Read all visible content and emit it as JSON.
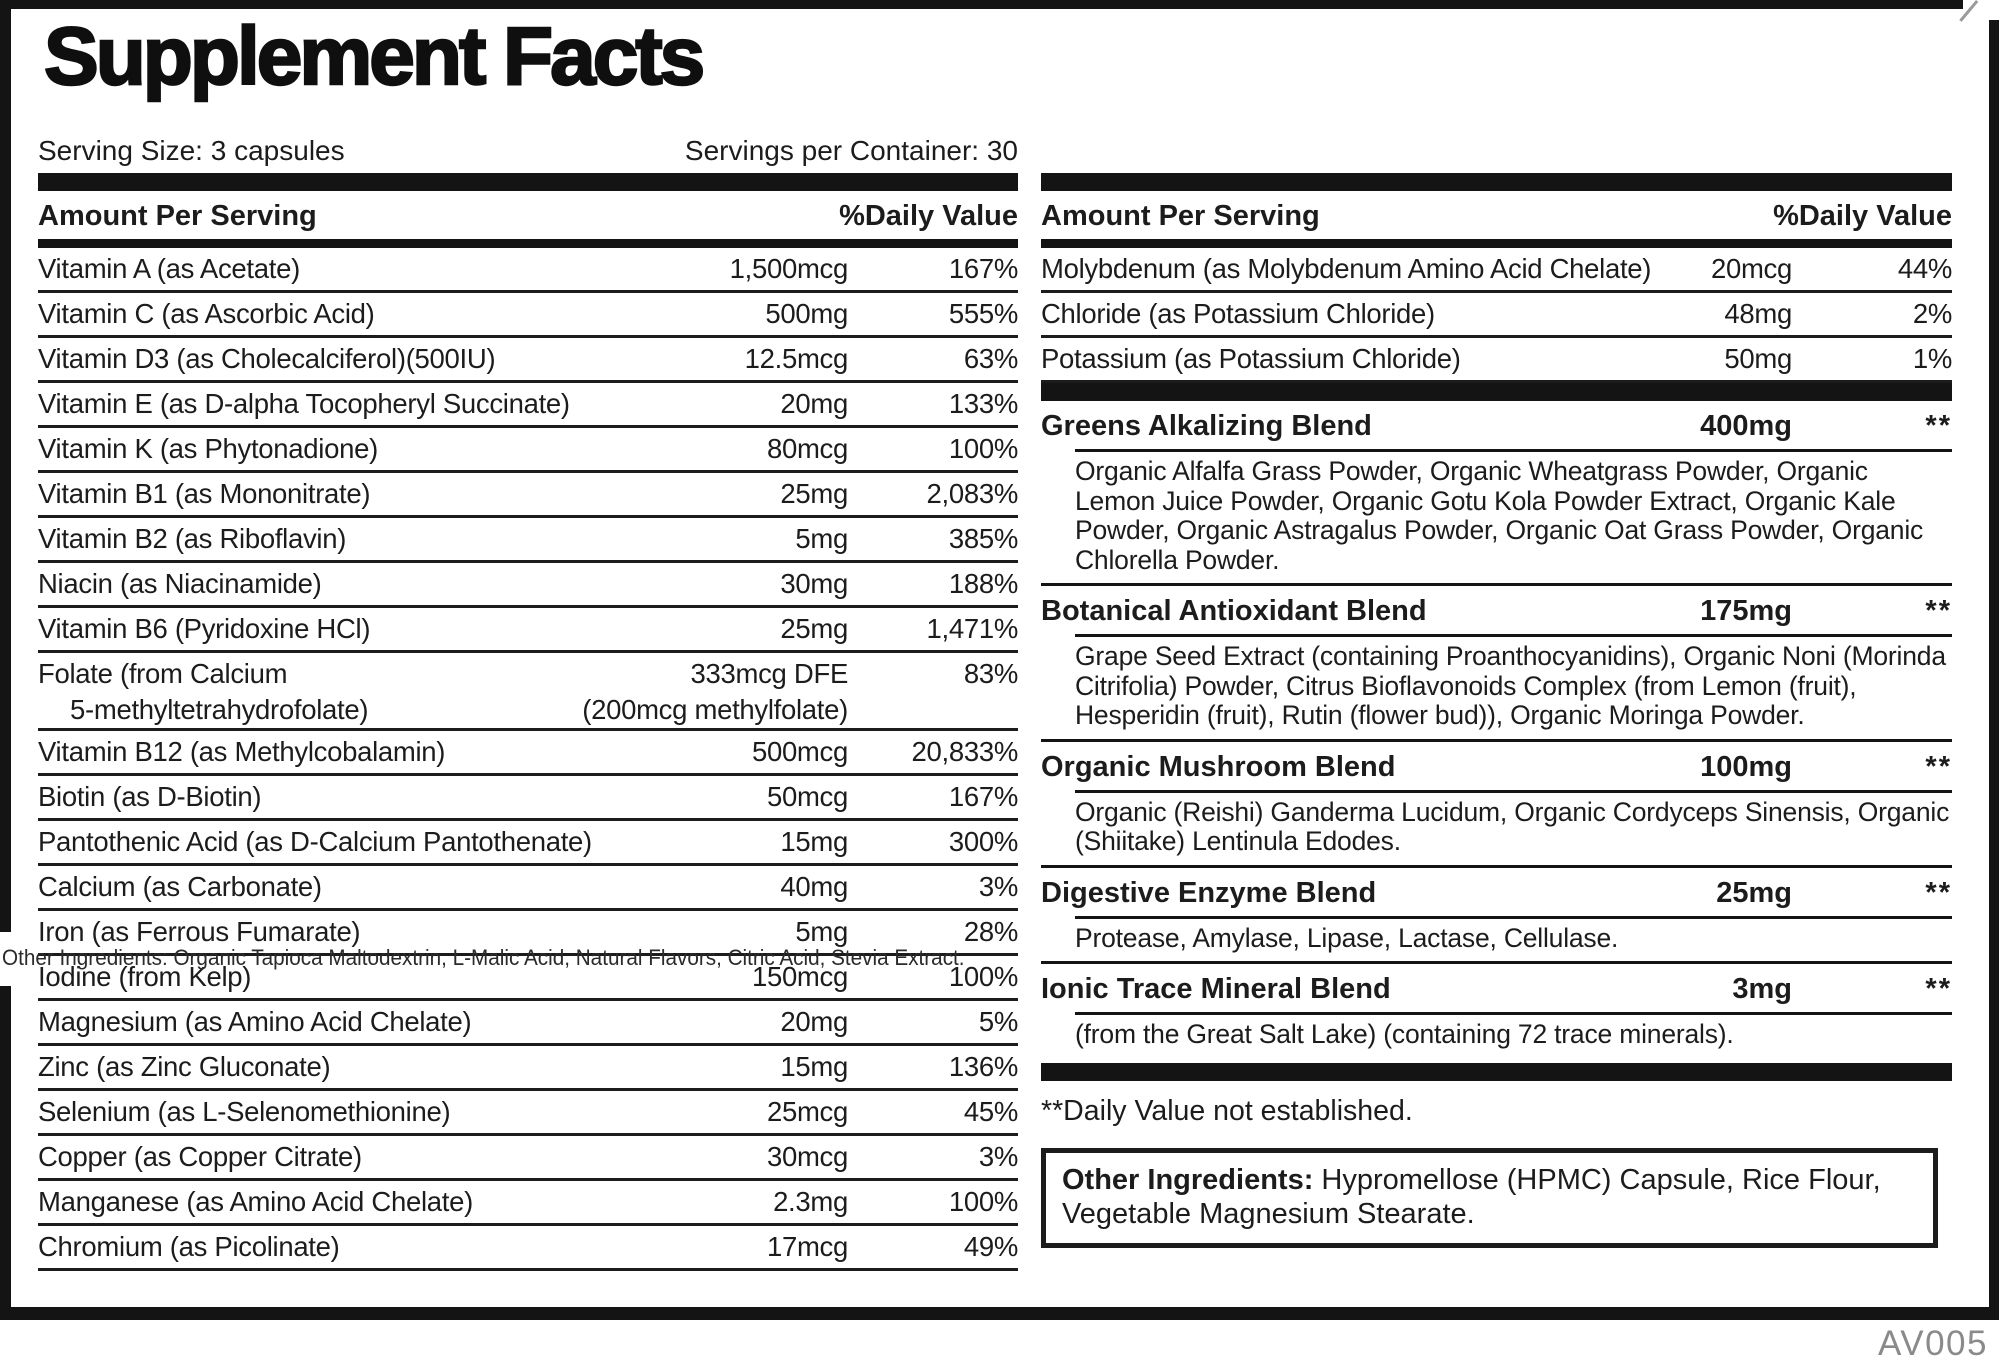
{
  "title": "Supplement Facts",
  "serving": {
    "size": "Serving Size: 3 capsules",
    "per_container": "Servings per Container: 30"
  },
  "table_header": {
    "amount": "Amount Per Serving",
    "dv": "%Daily Value"
  },
  "left_rows": [
    {
      "name": "Vitamin A (as Acetate)",
      "amount": "1,500mcg",
      "dv": "167%"
    },
    {
      "name": "Vitamin C (as Ascorbic Acid)",
      "amount": "500mg",
      "dv": "555%"
    },
    {
      "name": "Vitamin D3 (as Cholecalciferol)(500IU)",
      "amount": "12.5mcg",
      "dv": "63%"
    },
    {
      "name": "Vitamin E (as D-alpha Tocopheryl Succinate)",
      "amount": "20mg",
      "dv": "133%"
    },
    {
      "name": "Vitamin K (as Phytonadione)",
      "amount": "80mcg",
      "dv": "100%"
    },
    {
      "name": "Vitamin B1 (as Mononitrate)",
      "amount": "25mg",
      "dv": "2,083%"
    },
    {
      "name": "Vitamin B2 (as Riboflavin)",
      "amount": "5mg",
      "dv": "385%"
    },
    {
      "name": "Niacin (as Niacinamide)",
      "amount": "30mg",
      "dv": "188%"
    },
    {
      "name": "Vitamin B6 (Pyridoxine HCl)",
      "amount": "25mg",
      "dv": "1,471%"
    },
    {
      "name": "Folate (from Calcium",
      "name_sub": "5-methyltetrahydrofolate)",
      "amount": "333mcg DFE",
      "amount_sub": "(200mcg methylfolate)",
      "dv": "83%"
    },
    {
      "name": "Vitamin B12 (as Methylcobalamin)",
      "amount": "500mcg",
      "dv": "20,833%"
    },
    {
      "name": "Biotin (as D-Biotin)",
      "amount": "50mcg",
      "dv": "167%"
    },
    {
      "name": "Pantothenic Acid (as D-Calcium Pantothenate)",
      "amount": "15mg",
      "dv": "300%"
    },
    {
      "name": "Calcium (as Carbonate)",
      "amount": "40mg",
      "dv": "3%"
    },
    {
      "name": "Iron (as Ferrous Fumarate)",
      "amount": "5mg",
      "dv": "28%"
    },
    {
      "name": "Iodine (from Kelp)",
      "amount": "150mcg",
      "dv": "100%"
    },
    {
      "name": "Magnesium (as Amino Acid Chelate)",
      "amount": "20mg",
      "dv": "5%"
    },
    {
      "name": "Zinc (as Zinc Gluconate)",
      "amount": "15mg",
      "dv": "136%"
    },
    {
      "name": "Selenium (as L-Selenomethionine)",
      "amount": "25mcg",
      "dv": "45%"
    },
    {
      "name": "Copper (as Copper Citrate)",
      "amount": "30mcg",
      "dv": "3%"
    },
    {
      "name": "Manganese (as Amino Acid Chelate)",
      "amount": "2.3mg",
      "dv": "100%"
    },
    {
      "name": "Chromium (as Picolinate)",
      "amount": "17mcg",
      "dv": "49%"
    }
  ],
  "right_rows": [
    {
      "name": "Molybdenum (as Molybdenum Amino Acid Chelate)",
      "amount": "20mcg",
      "dv": "44%"
    },
    {
      "name": "Chloride (as Potassium Chloride)",
      "amount": "48mg",
      "dv": "2%"
    },
    {
      "name": "Potassium (as Potassium Chloride)",
      "amount": "50mg",
      "dv": "1%"
    }
  ],
  "blends": [
    {
      "name": "Greens Alkalizing Blend",
      "amount": "400mg",
      "dv": "**",
      "desc": "Organic Alfalfa Grass Powder, Organic Wheatgrass Powder, Organic Lemon Juice Powder, Organic Gotu Kola Powder Extract, Organic Kale Powder, Organic Astragalus Powder, Organic Oat Grass Powder, Organic Chlorella Powder."
    },
    {
      "name": "Botanical Antioxidant Blend",
      "amount": "175mg",
      "dv": "**",
      "desc": "Grape Seed Extract (containing Proanthocyanidins), Organic Noni (Morinda Citrifolia) Powder, Citrus Bioflavonoids Complex (from Lemon (fruit), Hesperidin (fruit), Rutin (flower bud)), Organic Moringa Powder."
    },
    {
      "name": "Organic Mushroom Blend",
      "amount": "100mg",
      "dv": "**",
      "desc": "Organic (Reishi) Ganderma Lucidum, Organic Cordyceps Sinensis, Organic (Shiitake) Lentinula Edodes."
    },
    {
      "name": "Digestive Enzyme Blend",
      "amount": "25mg",
      "dv": "**",
      "desc": "Protease, Amylase, Lipase, Lactase, Cellulase."
    },
    {
      "name": "Ionic Trace Mineral Blend",
      "amount": "3mg",
      "dv": "**",
      "desc": "(from the Great Salt Lake) (containing 72 trace minerals)."
    }
  ],
  "footnote": "**Daily Value not established.",
  "other_ingredients": {
    "label": "Other Ingredients:",
    "text": " Hypromellose (HPMC) Capsule, Rice Flour, Vegetable Magnesium Stearate."
  },
  "overlay_strike_text": "Other Ingredients: Organic Tapioca Maltodextrin, L-Malic Acid, Natural Flavors, Citric Acid, Stevia Extract.",
  "code": "AV005",
  "colors": {
    "ink": "#1c1c1c",
    "bar": "#141414",
    "code_gray": "#8a8a8a"
  }
}
